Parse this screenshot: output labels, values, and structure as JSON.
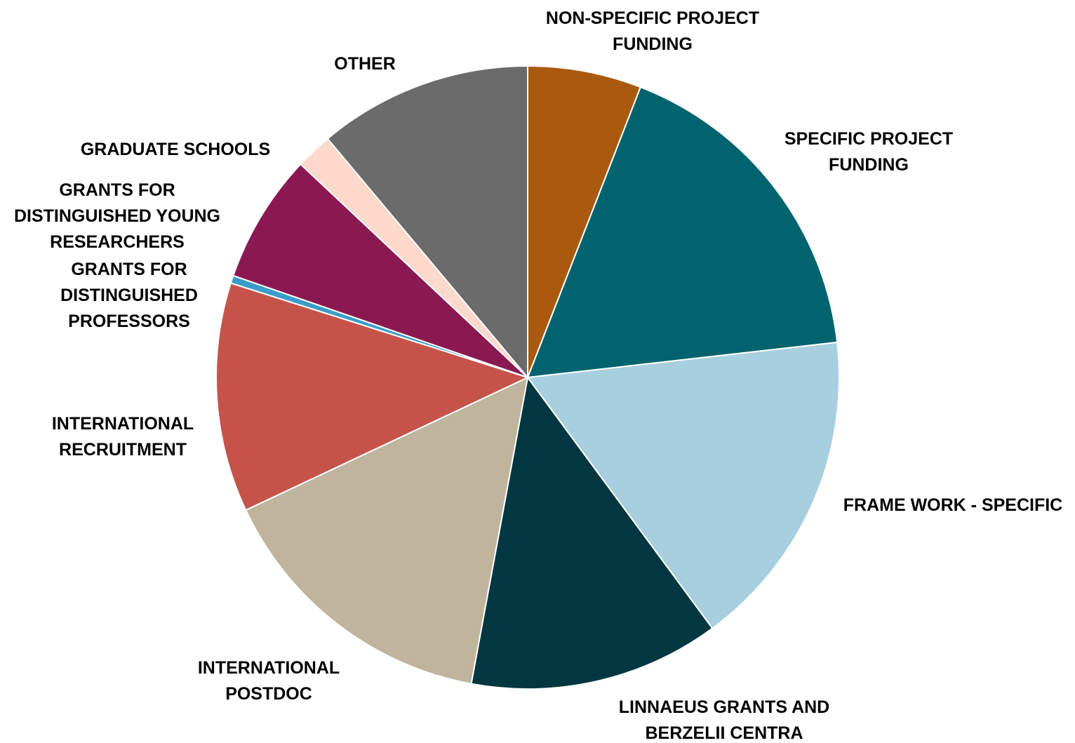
{
  "chart_data": {
    "type": "pie",
    "title": "",
    "start_angle_deg": 0,
    "direction": "clockwise",
    "slices": [
      {
        "label": [
          "NON-SPECIFIC PROJECT",
          "FUNDING"
        ],
        "value": 5.9,
        "color": "#AA5A0F"
      },
      {
        "label": [
          "SPECIFIC PROJECT",
          "FUNDING"
        ],
        "value": 17.3,
        "color": "#00636D"
      },
      {
        "label": [
          "FRAME WORK - SPECIFIC"
        ],
        "value": 16.7,
        "color": "#A8CFDF"
      },
      {
        "label": [
          "LINNAEUS GRANTS AND",
          "BERZELII CENTRA"
        ],
        "value": 13.0,
        "color": "#023640"
      },
      {
        "label": [
          "INTERNATIONAL",
          "POSTDOC"
        ],
        "value": 15.1,
        "color": "#BFB49C"
      },
      {
        "label": [
          "INTERNATIONAL",
          "RECRUITMENT"
        ],
        "value": 11.9,
        "color": "#C6534A"
      },
      {
        "label": [
          "GRANTS FOR",
          "DISTINGUISHED",
          "PROFESSORS"
        ],
        "value": 0.4,
        "color": "#3A9CC9"
      },
      {
        "label": [
          "GRANTS FOR",
          "DISTINGUISHED YOUNG",
          "RESEARCHERS"
        ],
        "value": 6.7,
        "color": "#8B1951"
      },
      {
        "label": [
          "GRADUATE SCHOOLS"
        ],
        "value": 1.9,
        "color": "#FCD9CB"
      },
      {
        "label": [
          "OTHER"
        ],
        "value": 11.1,
        "color": "#6B6B6B"
      }
    ]
  }
}
